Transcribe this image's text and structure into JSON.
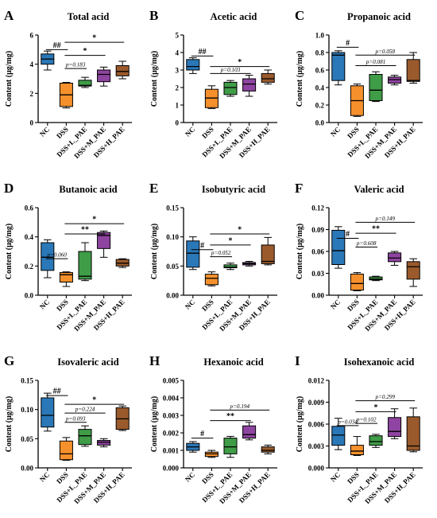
{
  "categories": [
    "NC",
    "DSS",
    "DSS+L_PAE",
    "DSS+M_PAE",
    "DSS+H_PAE"
  ],
  "colors": [
    "#2a78b8",
    "#f5902c",
    "#3f9c47",
    "#8e44a0",
    "#9a5a2c"
  ],
  "ylabel": "Content (μg/mg)",
  "chart_data": [
    {
      "letter": "A",
      "title": "Total acid",
      "type": "box",
      "ylim": [
        0,
        6
      ],
      "yticks": [
        "0",
        "2",
        "4",
        "6"
      ],
      "tick_values": [
        0,
        2,
        4,
        6
      ],
      "boxes": [
        {
          "min": 3.6,
          "q1": 4.0,
          "median": 4.35,
          "q3": 4.7,
          "max": 4.9
        },
        {
          "min": 1.0,
          "q1": 1.1,
          "median": 1.9,
          "q3": 2.7,
          "max": 2.75
        },
        {
          "min": 2.4,
          "q1": 2.5,
          "median": 2.55,
          "q3": 2.9,
          "max": 3.1
        },
        {
          "min": 2.5,
          "q1": 2.8,
          "median": 3.3,
          "q3": 3.6,
          "max": 3.8
        },
        {
          "min": 3.0,
          "q1": 3.2,
          "median": 3.5,
          "q3": 3.9,
          "max": 4.2
        }
      ],
      "annotations": [
        {
          "from": 0,
          "to": 1,
          "y": 5.0,
          "label": "##"
        },
        {
          "from": 1,
          "to": 4,
          "y": 5.5,
          "label": "*"
        },
        {
          "from": 1,
          "to": 3,
          "y": 4.6,
          "label": "*"
        },
        {
          "from": 1,
          "to": 2,
          "y": 3.7,
          "label": "p=0.183"
        }
      ]
    },
    {
      "letter": "B",
      "title": "Acetic acid",
      "type": "box",
      "ylim": [
        0,
        5
      ],
      "yticks": [
        "0",
        "1",
        "2",
        "3",
        "4",
        "5"
      ],
      "tick_values": [
        0,
        1,
        2,
        3,
        4,
        5
      ],
      "boxes": [
        {
          "min": 2.8,
          "q1": 3.0,
          "median": 3.2,
          "q3": 3.6,
          "max": 3.7
        },
        {
          "min": 0.8,
          "q1": 0.85,
          "median": 1.4,
          "q3": 1.9,
          "max": 2.1
        },
        {
          "min": 1.5,
          "q1": 1.6,
          "median": 2.0,
          "q3": 2.3,
          "max": 2.4
        },
        {
          "min": 1.5,
          "q1": 1.8,
          "median": 2.2,
          "q3": 2.5,
          "max": 2.7
        },
        {
          "min": 2.2,
          "q1": 2.3,
          "median": 2.5,
          "q3": 2.8,
          "max": 3.0
        }
      ],
      "annotations": [
        {
          "from": 0,
          "to": 1,
          "y": 3.8,
          "label": "##"
        },
        {
          "from": 1,
          "to": 4,
          "y": 3.2,
          "label": "*"
        },
        {
          "from": 1,
          "to": 3,
          "y": 2.8,
          "label": "p=0.103"
        }
      ]
    },
    {
      "letter": "C",
      "title": "Propanoic acid",
      "type": "box",
      "ylim": [
        0,
        1.0
      ],
      "yticks": [
        "0.0",
        "0.2",
        "0.4",
        "0.6",
        "0.8",
        "1.0"
      ],
      "tick_values": [
        0,
        0.2,
        0.4,
        0.6,
        0.8,
        1.0
      ],
      "boxes": [
        {
          "min": 0.43,
          "q1": 0.48,
          "median": 0.77,
          "q3": 0.8,
          "max": 0.82
        },
        {
          "min": 0.07,
          "q1": 0.08,
          "median": 0.25,
          "q3": 0.42,
          "max": 0.44
        },
        {
          "min": 0.24,
          "q1": 0.25,
          "median": 0.37,
          "q3": 0.55,
          "max": 0.58
        },
        {
          "min": 0.43,
          "q1": 0.45,
          "median": 0.49,
          "q3": 0.52,
          "max": 0.54
        },
        {
          "min": 0.45,
          "q1": 0.47,
          "median": 0.48,
          "q3": 0.72,
          "max": 0.8
        }
      ],
      "annotations": [
        {
          "from": 0,
          "to": 1,
          "y": 0.86,
          "label": "#"
        },
        {
          "from": 1,
          "to": 4,
          "y": 0.77,
          "label": "p=0.058"
        },
        {
          "from": 1,
          "to": 3,
          "y": 0.65,
          "label": "p=0.081"
        }
      ]
    },
    {
      "letter": "D",
      "title": "Butanoic acid",
      "type": "box",
      "ylim": [
        0,
        0.6
      ],
      "yticks": [
        "0.0",
        "0.2",
        "0.4",
        "0.6"
      ],
      "tick_values": [
        0,
        0.2,
        0.4,
        0.6
      ],
      "boxes": [
        {
          "min": 0.12,
          "q1": 0.17,
          "median": 0.26,
          "q3": 0.36,
          "max": 0.38
        },
        {
          "min": 0.06,
          "q1": 0.09,
          "median": 0.14,
          "q3": 0.155,
          "max": 0.16
        },
        {
          "min": 0.1,
          "q1": 0.11,
          "median": 0.13,
          "q3": 0.3,
          "max": 0.36
        },
        {
          "min": 0.26,
          "q1": 0.32,
          "median": 0.41,
          "q3": 0.43,
          "max": 0.44
        },
        {
          "min": 0.19,
          "q1": 0.2,
          "median": 0.22,
          "q3": 0.245,
          "max": 0.25
        }
      ],
      "annotations": [
        {
          "from": 0,
          "to": 1,
          "y": 0.25,
          "label": "p=0.060"
        },
        {
          "from": 1,
          "to": 4,
          "y": 0.49,
          "label": "*"
        },
        {
          "from": 1,
          "to": 3,
          "y": 0.42,
          "label": "**"
        }
      ]
    },
    {
      "letter": "E",
      "title": "Isobutyric acid",
      "type": "box",
      "ylim": [
        0,
        0.15
      ],
      "yticks": [
        "0.00",
        "0.05",
        "0.10",
        "0.15"
      ],
      "tick_values": [
        0,
        0.05,
        0.1,
        0.15
      ],
      "boxes": [
        {
          "min": 0.044,
          "q1": 0.048,
          "median": 0.072,
          "q3": 0.093,
          "max": 0.1
        },
        {
          "min": 0.016,
          "q1": 0.018,
          "median": 0.029,
          "q3": 0.036,
          "max": 0.04
        },
        {
          "min": 0.044,
          "q1": 0.047,
          "median": 0.048,
          "q3": 0.052,
          "max": 0.055
        },
        {
          "min": 0.05,
          "q1": 0.052,
          "median": 0.054,
          "q3": 0.056,
          "max": 0.058
        },
        {
          "min": 0.052,
          "q1": 0.054,
          "median": 0.058,
          "q3": 0.086,
          "max": 0.099
        }
      ],
      "annotations": [
        {
          "from": 0,
          "to": 1,
          "y": 0.078,
          "label": "#"
        },
        {
          "from": 1,
          "to": 4,
          "y": 0.105,
          "label": "*"
        },
        {
          "from": 1,
          "to": 3,
          "y": 0.086,
          "label": "*"
        },
        {
          "from": 1,
          "to": 2,
          "y": 0.066,
          "label": "p=0.052"
        }
      ]
    },
    {
      "letter": "F",
      "title": "Valeric acid",
      "type": "box",
      "ylim": [
        0,
        0.12
      ],
      "yticks": [
        "0.00",
        "0.03",
        "0.06",
        "0.09",
        "0.12"
      ],
      "tick_values": [
        0,
        0.03,
        0.06,
        0.09,
        0.12
      ],
      "boxes": [
        {
          "min": 0.037,
          "q1": 0.042,
          "median": 0.061,
          "q3": 0.089,
          "max": 0.094
        },
        {
          "min": 0.006,
          "q1": 0.007,
          "median": 0.016,
          "q3": 0.029,
          "max": 0.031
        },
        {
          "min": 0.02,
          "q1": 0.021,
          "median": 0.022,
          "q3": 0.025,
          "max": 0.026
        },
        {
          "min": 0.041,
          "q1": 0.046,
          "median": 0.051,
          "q3": 0.058,
          "max": 0.06
        },
        {
          "min": 0.012,
          "q1": 0.022,
          "median": 0.039,
          "q3": 0.046,
          "max": 0.05
        }
      ],
      "annotations": [
        {
          "from": 0,
          "to": 1,
          "y": 0.078,
          "label": "#"
        },
        {
          "from": 1,
          "to": 4,
          "y": 0.1,
          "label": "p=0.149"
        },
        {
          "from": 1,
          "to": 3,
          "y": 0.085,
          "label": "**"
        },
        {
          "from": 1,
          "to": 2,
          "y": 0.066,
          "label": "p=0.608"
        }
      ]
    },
    {
      "letter": "G",
      "title": "Isovaleric acid",
      "type": "box",
      "ylim": [
        0,
        0.15
      ],
      "yticks": [
        "0.00",
        "0.05",
        "0.10",
        "0.15"
      ],
      "tick_values": [
        0,
        0.05,
        0.1,
        0.15
      ],
      "boxes": [
        {
          "min": 0.063,
          "q1": 0.07,
          "median": 0.09,
          "q3": 0.12,
          "max": 0.128
        },
        {
          "min": 0.013,
          "q1": 0.014,
          "median": 0.024,
          "q3": 0.046,
          "max": 0.052
        },
        {
          "min": 0.037,
          "q1": 0.04,
          "median": 0.055,
          "q3": 0.066,
          "max": 0.072
        },
        {
          "min": 0.036,
          "q1": 0.039,
          "median": 0.044,
          "q3": 0.047,
          "max": 0.05
        },
        {
          "min": 0.064,
          "q1": 0.066,
          "median": 0.084,
          "q3": 0.103,
          "max": 0.106
        }
      ],
      "annotations": [
        {
          "from": 0,
          "to": 1,
          "y": 0.124,
          "label": "##"
        },
        {
          "from": 1,
          "to": 4,
          "y": 0.109,
          "label": "*"
        },
        {
          "from": 1,
          "to": 3,
          "y": 0.094,
          "label": "p=0.224"
        },
        {
          "from": 1,
          "to": 2,
          "y": 0.078,
          "label": "p=0.093"
        }
      ]
    },
    {
      "letter": "H",
      "title": "Hexanoic acid",
      "type": "box",
      "ylim": [
        0,
        0.005
      ],
      "yticks": [
        "0.000",
        "0.001",
        "0.002",
        "0.003",
        "0.004",
        "0.005"
      ],
      "tick_values": [
        0,
        0.001,
        0.002,
        0.003,
        0.004,
        0.005
      ],
      "boxes": [
        {
          "min": 0.0009,
          "q1": 0.001,
          "median": 0.0012,
          "q3": 0.0014,
          "max": 0.0015
        },
        {
          "min": 0.0006,
          "q1": 0.00065,
          "median": 0.0008,
          "q3": 0.0009,
          "max": 0.001
        },
        {
          "min": 0.0006,
          "q1": 0.0008,
          "median": 0.0012,
          "q3": 0.0017,
          "max": 0.0018
        },
        {
          "min": 0.0016,
          "q1": 0.0017,
          "median": 0.0019,
          "q3": 0.0024,
          "max": 0.0026
        },
        {
          "min": 0.0008,
          "q1": 0.0009,
          "median": 0.001,
          "q3": 0.0012,
          "max": 0.0013
        }
      ],
      "annotations": [
        {
          "from": 0,
          "to": 1,
          "y": 0.0017,
          "label": "#"
        },
        {
          "from": 1,
          "to": 4,
          "y": 0.0033,
          "label": "p=0.194"
        },
        {
          "from": 1,
          "to": 3,
          "y": 0.0027,
          "label": "**"
        }
      ]
    },
    {
      "letter": "I",
      "title": "Isohexanoic acid",
      "type": "box",
      "ylim": [
        0,
        0.012
      ],
      "yticks": [
        "0.000",
        "0.003",
        "0.006",
        "0.009",
        "0.012"
      ],
      "tick_values": [
        0,
        0.003,
        0.006,
        0.009,
        0.012
      ],
      "boxes": [
        {
          "min": 0.0025,
          "q1": 0.0031,
          "median": 0.0045,
          "q3": 0.0057,
          "max": 0.0068
        },
        {
          "min": 0.0017,
          "q1": 0.0018,
          "median": 0.0023,
          "q3": 0.0031,
          "max": 0.0043
        },
        {
          "min": 0.0028,
          "q1": 0.0031,
          "median": 0.0036,
          "q3": 0.0044,
          "max": 0.0046
        },
        {
          "min": 0.004,
          "q1": 0.0043,
          "median": 0.005,
          "q3": 0.0069,
          "max": 0.0081
        },
        {
          "min": 0.0022,
          "q1": 0.0024,
          "median": 0.003,
          "q3": 0.007,
          "max": 0.0082
        }
      ],
      "annotations": [
        {
          "from": 0,
          "to": 1,
          "y": 0.0058,
          "label": "p=0.034"
        },
        {
          "from": 1,
          "to": 4,
          "y": 0.0092,
          "label": "p=0.299"
        },
        {
          "from": 1,
          "to": 3,
          "y": 0.0077,
          "label": "*"
        },
        {
          "from": 1,
          "to": 2,
          "y": 0.0061,
          "label": "p=0.102"
        }
      ]
    }
  ]
}
